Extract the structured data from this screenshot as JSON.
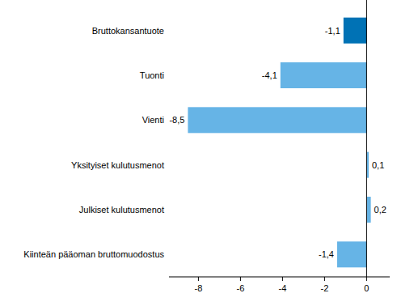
{
  "chart_data": {
    "type": "bar",
    "orientation": "horizontal",
    "categories": [
      "Bruttokansantuote",
      "Tuonti",
      "Vienti",
      "Yksityiset kulutusmenot",
      "Julkiset kulutusmenot",
      "Kiinteän pääoman bruttomuodostus"
    ],
    "values": [
      -1.1,
      -4.1,
      -8.5,
      0.1,
      0.2,
      -1.4
    ],
    "value_labels": [
      "-1,1",
      "-4,1",
      "-8,5",
      "0,1",
      "0,2",
      "-1,4"
    ],
    "colors": [
      "#0072b5",
      "#66b4e6",
      "#66b4e6",
      "#66b4e6",
      "#66b4e6",
      "#66b4e6"
    ],
    "xlim": [
      -9.4,
      1.1
    ],
    "xticks": [
      -8,
      -6,
      -4,
      -2,
      0
    ],
    "grid": false,
    "data_labels": true
  }
}
